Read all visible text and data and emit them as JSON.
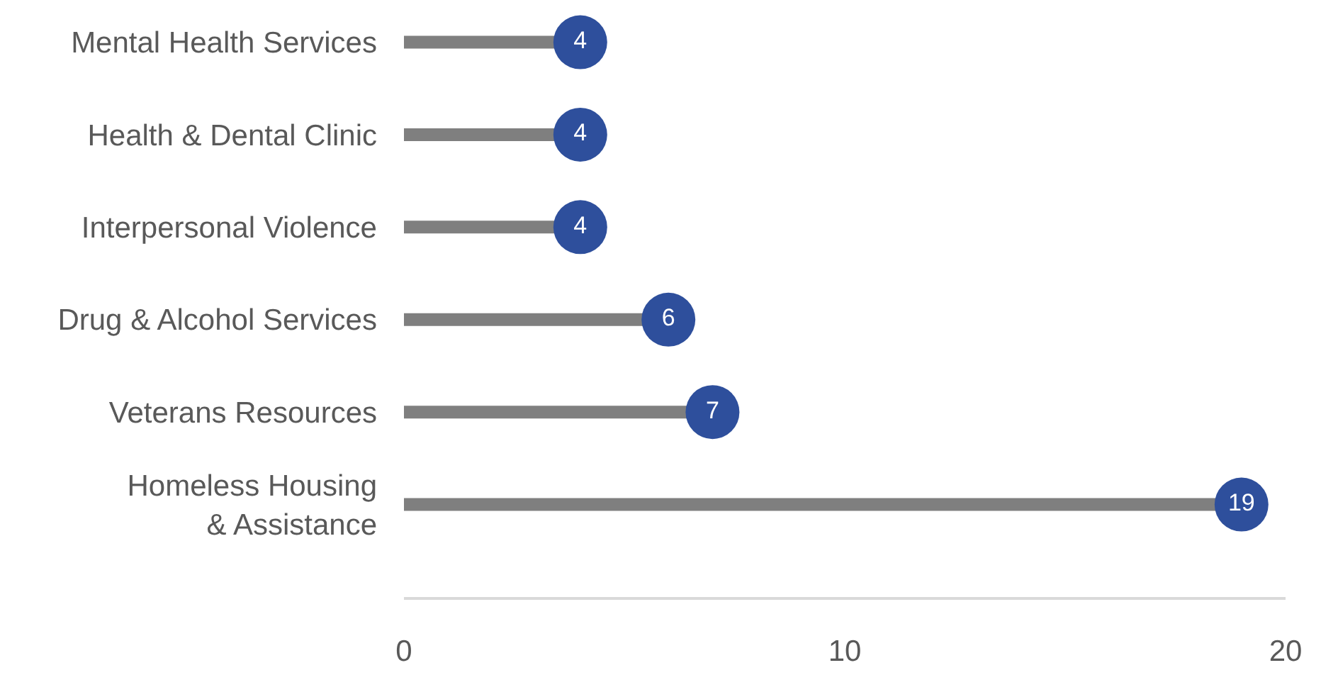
{
  "chart_data": {
    "type": "lollipop",
    "orientation": "horizontal",
    "categories": [
      "Mental Health Services",
      "Health & Dental Clinic",
      "Interpersonal Violence",
      "Drug & Alcohol Services",
      "Veterans Resources",
      "Homeless Housing\n& Assistance"
    ],
    "values": [
      4,
      4,
      4,
      6,
      7,
      19
    ],
    "color": "#2e4f9c",
    "xlim": [
      0,
      20
    ],
    "xticks": [
      0,
      10,
      20
    ],
    "data_labels": true,
    "grid": false,
    "marker": "circle"
  }
}
